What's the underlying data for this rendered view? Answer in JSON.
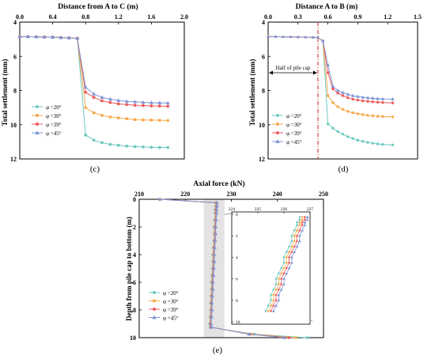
{
  "panels": {
    "c": {
      "label": "(c)"
    },
    "d": {
      "label": "(d)"
    },
    "e": {
      "label": "(e)"
    }
  },
  "annotation_d": "Half of pile cap",
  "legend_names": [
    "φ =20°",
    "φ =30°",
    "φ =39°",
    "φ =45°"
  ],
  "colors": {
    "s20": "#6fc9c1",
    "s30": "#f7a94b",
    "s39": "#ef5a5a",
    "s45": "#7e97d6",
    "frame": "#000000",
    "shade": "#d9d6d6",
    "dashdot": "#cc2222"
  },
  "chart_data": [
    {
      "id": "c",
      "type": "line",
      "title": "",
      "xlabel": "Distance from A to C (m)",
      "ylabel": "Total settlement (mm)",
      "xlim": [
        0,
        2.0
      ],
      "ylim": [
        4,
        12
      ],
      "y_inverted": true,
      "x_axis_position": "top",
      "xticks": [
        "0.0",
        "0.4",
        "0.8",
        "1.2",
        "1.6",
        "2.0"
      ],
      "yticks": [
        "4",
        "6",
        "8",
        "10",
        "12"
      ],
      "legend": "bottom-left",
      "x": [
        0.0,
        0.1,
        0.2,
        0.3,
        0.4,
        0.5,
        0.6,
        0.7,
        0.8,
        0.9,
        1.0,
        1.1,
        1.2,
        1.3,
        1.4,
        1.5,
        1.6,
        1.7,
        1.8
      ],
      "series": [
        {
          "name": "φ =20°",
          "color_key": "s20",
          "values": [
            4.85,
            4.85,
            4.86,
            4.87,
            4.88,
            4.9,
            4.92,
            4.95,
            10.6,
            10.9,
            11.05,
            11.15,
            11.2,
            11.25,
            11.28,
            11.3,
            11.32,
            11.33,
            11.33
          ]
        },
        {
          "name": "φ =30°",
          "color_key": "s30",
          "values": [
            4.85,
            4.85,
            4.86,
            4.87,
            4.88,
            4.9,
            4.92,
            4.95,
            9.0,
            9.3,
            9.45,
            9.55,
            9.6,
            9.65,
            9.7,
            9.72,
            9.73,
            9.74,
            9.75
          ]
        },
        {
          "name": "φ =39°",
          "color_key": "s39",
          "values": [
            4.85,
            4.85,
            4.86,
            4.87,
            4.88,
            4.9,
            4.92,
            4.95,
            8.1,
            8.4,
            8.6,
            8.7,
            8.78,
            8.82,
            8.86,
            8.88,
            8.9,
            8.91,
            8.92
          ]
        },
        {
          "name": "φ =45°",
          "color_key": "s45",
          "values": [
            4.85,
            4.85,
            4.86,
            4.87,
            4.88,
            4.9,
            4.92,
            4.95,
            7.8,
            8.2,
            8.4,
            8.5,
            8.58,
            8.63,
            8.66,
            8.69,
            8.71,
            8.72,
            8.73
          ]
        }
      ]
    },
    {
      "id": "d",
      "type": "line",
      "title": "",
      "xlabel": "Distance A to B (m)",
      "ylabel": "Total settlement (mm)",
      "xlim": [
        0,
        1.5
      ],
      "ylim": [
        4,
        12
      ],
      "y_inverted": true,
      "x_axis_position": "top",
      "xticks": [
        "0.0",
        "0.3",
        "0.6",
        "0.9",
        "1.2",
        "1.5"
      ],
      "yticks": [
        "4",
        "6",
        "8",
        "10",
        "12"
      ],
      "legend": "bottom-left",
      "vline_x": 0.5,
      "x": [
        0.0,
        0.075,
        0.15,
        0.225,
        0.3,
        0.375,
        0.45,
        0.5,
        0.55,
        0.6,
        0.65,
        0.7,
        0.75,
        0.8,
        0.85,
        0.9,
        0.95,
        1.0,
        1.05,
        1.1,
        1.15,
        1.25
      ],
      "series": [
        {
          "name": "φ =20°",
          "color_key": "s20",
          "values": [
            4.85,
            4.85,
            4.86,
            4.86,
            4.87,
            4.88,
            4.89,
            4.9,
            5.1,
            9.95,
            10.2,
            10.4,
            10.55,
            10.7,
            10.8,
            10.9,
            10.97,
            11.03,
            11.08,
            11.12,
            11.15,
            11.18
          ]
        },
        {
          "name": "φ =30°",
          "color_key": "s30",
          "values": [
            4.85,
            4.85,
            4.86,
            4.86,
            4.87,
            4.88,
            4.89,
            4.9,
            5.1,
            8.3,
            8.7,
            8.95,
            9.1,
            9.22,
            9.3,
            9.36,
            9.41,
            9.45,
            9.48,
            9.5,
            9.52,
            9.54
          ]
        },
        {
          "name": "φ =39°",
          "color_key": "s39",
          "values": [
            4.85,
            4.85,
            4.86,
            4.86,
            4.87,
            4.88,
            4.89,
            4.9,
            5.1,
            6.95,
            7.9,
            8.15,
            8.3,
            8.42,
            8.5,
            8.56,
            8.6,
            8.63,
            8.66,
            8.68,
            8.7,
            8.72
          ]
        },
        {
          "name": "φ =45°",
          "color_key": "s45",
          "values": [
            4.85,
            4.85,
            4.86,
            4.86,
            4.87,
            4.88,
            4.89,
            4.9,
            5.1,
            6.5,
            7.75,
            8.0,
            8.12,
            8.22,
            8.3,
            8.35,
            8.39,
            8.42,
            8.45,
            8.47,
            8.49,
            8.5
          ]
        }
      ]
    },
    {
      "id": "e",
      "type": "line",
      "title": "",
      "xlabel": "Axial force (kN)",
      "ylabel": "Depth from pile cap to bottom (m)",
      "xlim": [
        210,
        250
      ],
      "ylim": [
        0,
        10
      ],
      "y_inverted": true,
      "x_axis_position": "top",
      "xticks": [
        "210",
        "220",
        "230",
        "240",
        "250"
      ],
      "yticks": [
        "0",
        "2",
        "4",
        "6",
        "8",
        "10"
      ],
      "legend": "bottom-left",
      "shaded_x_range": [
        224,
        228.5
      ],
      "y": [
        0.0,
        0.25,
        0.5,
        0.75,
        1.0,
        1.5,
        2.0,
        2.5,
        3.0,
        3.5,
        4.0,
        4.5,
        5.0,
        5.5,
        6.0,
        6.5,
        7.0,
        7.5,
        8.0,
        8.5,
        9.0,
        9.25,
        9.75,
        10.0
      ],
      "series": [
        {
          "name": "φ =20°",
          "color_key": "s20",
          "values": [
            214.5,
            226.6,
            226.6,
            226.5,
            226.5,
            226.4,
            226.3,
            226.3,
            226.2,
            226.1,
            226.0,
            226.0,
            225.9,
            225.8,
            225.7,
            225.7,
            225.6,
            225.5,
            225.5,
            225.4,
            225.3,
            225.4,
            235.0,
            246.5
          ]
        },
        {
          "name": "φ =30°",
          "color_key": "s30",
          "values": [
            214.5,
            226.7,
            226.7,
            226.6,
            226.6,
            226.5,
            226.4,
            226.4,
            226.3,
            226.2,
            226.1,
            226.1,
            226.0,
            225.9,
            225.8,
            225.8,
            225.7,
            225.6,
            225.6,
            225.5,
            225.4,
            225.5,
            234.5,
            244.0
          ]
        },
        {
          "name": "φ =39°",
          "color_key": "s39",
          "values": [
            214.5,
            226.8,
            226.8,
            226.7,
            226.7,
            226.6,
            226.5,
            226.5,
            226.4,
            226.3,
            226.2,
            226.2,
            226.1,
            226.0,
            225.9,
            225.9,
            225.8,
            225.7,
            225.7,
            225.6,
            225.5,
            225.6,
            234.0,
            242.5
          ]
        },
        {
          "name": "φ =45°",
          "color_key": "s45",
          "values": [
            214.5,
            226.9,
            226.9,
            226.8,
            226.8,
            226.7,
            226.6,
            226.6,
            226.5,
            226.4,
            226.3,
            226.3,
            226.2,
            226.1,
            226.0,
            226.0,
            225.9,
            225.8,
            225.8,
            225.7,
            225.6,
            225.7,
            233.8,
            241.5
          ]
        }
      ],
      "inset": {
        "xlim": [
          224,
          227
        ],
        "ylim": [
          0,
          10
        ],
        "y_inverted": true,
        "xticks": [
          "224",
          "225",
          "226",
          "227"
        ],
        "yticks": [
          "0",
          "2",
          "4",
          "6",
          "8",
          "10"
        ]
      }
    }
  ]
}
